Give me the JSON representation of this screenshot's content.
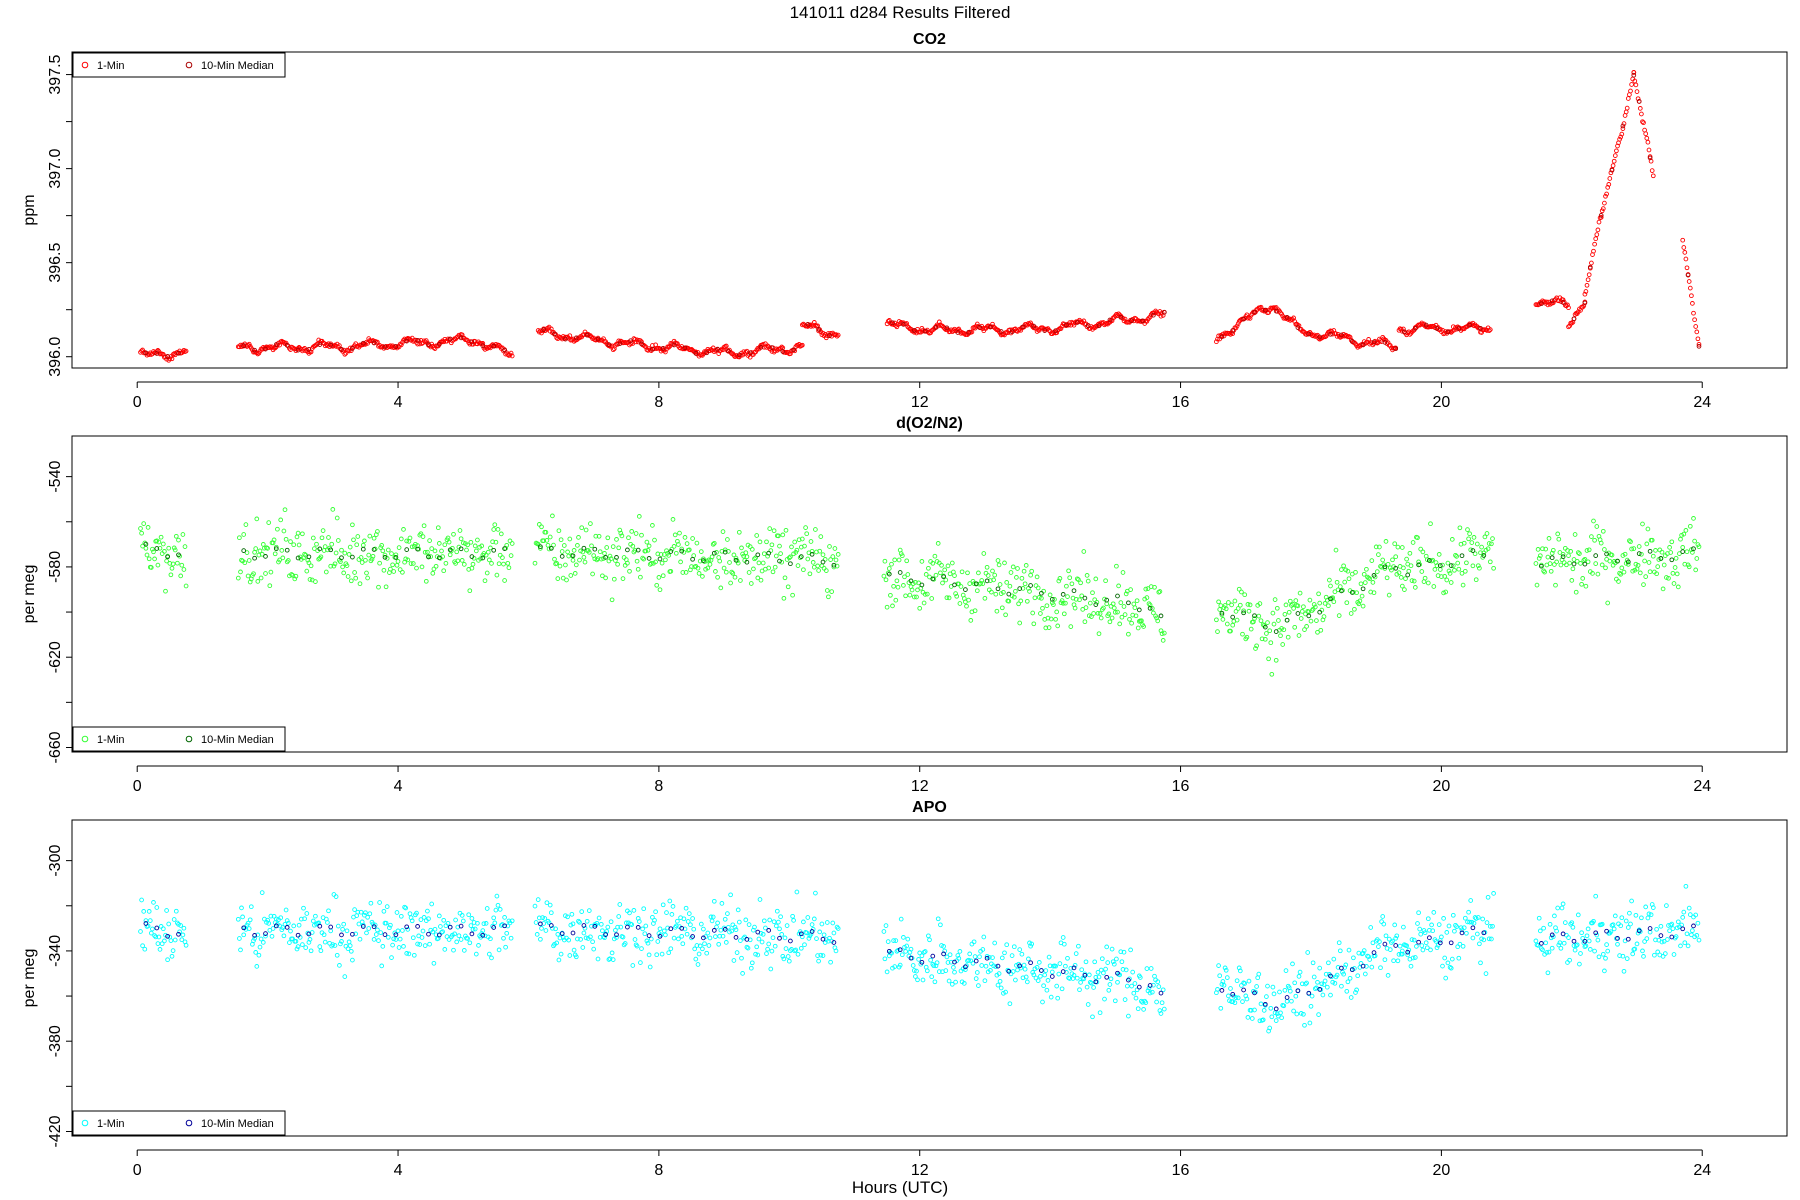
{
  "figure": {
    "title": "141011   d284   Results Filtered"
  },
  "chart_data": [
    {
      "type": "scatter",
      "title": "CO2",
      "xlabel": "",
      "ylabel": "ppm",
      "xlim": [
        -1.0,
        25.3
      ],
      "ylim": [
        395.94,
        397.62
      ],
      "xticks": [
        "0",
        "4",
        "8",
        "12",
        "16",
        "20",
        "24"
      ],
      "yticks": [
        "396.0",
        "396.5",
        "397.0",
        "397.5"
      ],
      "legend": {
        "position": "top-left",
        "entries": [
          "1-Min",
          "10-Min Median"
        ]
      },
      "colors": {
        "one_min": "#ff0000",
        "median": "#aa0000"
      },
      "segments": [
        {
          "x_range": [
            0.05,
            0.75
          ],
          "y_trend": [
            [
              0.05,
              396.0
            ],
            [
              0.75,
              396.03
            ]
          ]
        },
        {
          "x_range": [
            1.55,
            5.75
          ],
          "y_trend": [
            [
              1.55,
              396.05
            ],
            [
              3.0,
              396.05
            ],
            [
              5.2,
              396.09
            ],
            [
              5.75,
              396.0
            ]
          ]
        },
        {
          "x_range": [
            6.15,
            10.2
          ],
          "y_trend": [
            [
              6.15,
              396.13
            ],
            [
              7.5,
              396.07
            ],
            [
              9.0,
              396.02
            ],
            [
              10.2,
              396.05
            ]
          ]
        },
        {
          "x_range": [
            10.2,
            10.75
          ],
          "y_trend": [
            [
              10.2,
              396.16
            ],
            [
              10.75,
              396.12
            ]
          ]
        },
        {
          "x_range": [
            11.5,
            15.75
          ],
          "y_trend": [
            [
              11.5,
              396.17
            ],
            [
              12.3,
              396.14
            ],
            [
              14.0,
              396.15
            ],
            [
              15.75,
              396.22
            ]
          ]
        },
        {
          "x_range": [
            16.55,
            19.3
          ],
          "y_trend": [
            [
              16.55,
              396.1
            ],
            [
              17.4,
              396.28
            ],
            [
              17.8,
              396.14
            ],
            [
              19.3,
              396.05
            ]
          ]
        },
        {
          "x_range": [
            19.35,
            20.75
          ],
          "y_trend": [
            [
              19.35,
              396.15
            ],
            [
              20.75,
              396.15
            ]
          ]
        },
        {
          "x_range": [
            21.45,
            21.95
          ],
          "y_trend": [
            [
              21.45,
              396.3
            ],
            [
              21.95,
              396.27
            ]
          ]
        },
        {
          "x_range": [
            21.95,
            22.2
          ],
          "y_trend": [
            [
              21.95,
              396.17
            ],
            [
              22.2,
              396.3
            ]
          ]
        },
        {
          "x_range": [
            22.2,
            22.95
          ],
          "y_trend": [
            [
              22.2,
              396.35
            ],
            [
              22.95,
              397.5
            ]
          ]
        },
        {
          "x_range": [
            22.95,
            23.25
          ],
          "y_trend": [
            [
              22.95,
              397.5
            ],
            [
              23.25,
              396.95
            ]
          ]
        },
        {
          "x_range": [
            23.7,
            23.95
          ],
          "y_trend": [
            [
              23.7,
              396.6
            ],
            [
              23.95,
              396.05
            ]
          ]
        }
      ]
    },
    {
      "type": "scatter",
      "title": "d(O2/N2)",
      "xlabel": "",
      "ylabel": "per meg",
      "xlim": [
        -1.0,
        25.3
      ],
      "ylim": [
        -662,
        -522
      ],
      "xticks": [
        "0",
        "4",
        "8",
        "12",
        "16",
        "20",
        "24"
      ],
      "yticks": [
        "-540",
        "-580",
        "-620",
        "-660"
      ],
      "legend": {
        "position": "bottom-left",
        "entries": [
          "1-Min",
          "10-Min Median"
        ]
      },
      "colors": {
        "one_min": "#33ff33",
        "median": "#006600"
      },
      "segments": [
        {
          "x_range": [
            0.05,
            0.75
          ],
          "y_trend": [
            [
              0.05,
              -572
            ],
            [
              0.75,
              -574
            ]
          ]
        },
        {
          "x_range": [
            1.55,
            5.75
          ],
          "y_trend": [
            [
              1.55,
              -574
            ],
            [
              5.75,
              -574
            ]
          ]
        },
        {
          "x_range": [
            6.1,
            10.75
          ],
          "y_trend": [
            [
              6.1,
              -573
            ],
            [
              10.75,
              -577
            ]
          ]
        },
        {
          "x_range": [
            11.45,
            15.75
          ],
          "y_trend": [
            [
              11.45,
              -584
            ],
            [
              13.5,
              -590
            ],
            [
              15.5,
              -597
            ],
            [
              15.75,
              -606
            ]
          ]
        },
        {
          "x_range": [
            16.55,
            19.4
          ],
          "y_trend": [
            [
              16.55,
              -598
            ],
            [
              17.5,
              -607
            ],
            [
              18.2,
              -597
            ],
            [
              19.4,
              -578
            ]
          ]
        },
        {
          "x_range": [
            19.4,
            20.8
          ],
          "y_trend": [
            [
              19.4,
              -582
            ],
            [
              20.8,
              -573
            ]
          ]
        },
        {
          "x_range": [
            21.45,
            23.95
          ],
          "y_trend": [
            [
              21.45,
              -578
            ],
            [
              23.95,
              -574
            ]
          ]
        }
      ]
    },
    {
      "type": "scatter",
      "title": "APO",
      "xlabel": "Hours (UTC)",
      "ylabel": "per meg",
      "xlim": [
        -1.0,
        25.3
      ],
      "ylim": [
        -422,
        -282
      ],
      "xticks": [
        "0",
        "4",
        "8",
        "12",
        "16",
        "20",
        "24"
      ],
      "yticks": [
        "-300",
        "-340",
        "-380",
        "-420"
      ],
      "legend": {
        "position": "bottom-left",
        "entries": [
          "1-Min",
          "10-Min Median"
        ]
      },
      "colors": {
        "one_min": "#00ffff",
        "median": "#000099"
      },
      "segments": [
        {
          "x_range": [
            0.05,
            0.75
          ],
          "y_trend": [
            [
              0.05,
              -330
            ],
            [
              0.75,
              -332
            ]
          ]
        },
        {
          "x_range": [
            1.55,
            5.75
          ],
          "y_trend": [
            [
              1.55,
              -331
            ],
            [
              5.75,
              -331
            ]
          ]
        },
        {
          "x_range": [
            6.1,
            10.75
          ],
          "y_trend": [
            [
              6.1,
              -330
            ],
            [
              10.75,
              -334
            ]
          ]
        },
        {
          "x_range": [
            11.45,
            15.75
          ],
          "y_trend": [
            [
              11.45,
              -341
            ],
            [
              13.5,
              -347
            ],
            [
              15.5,
              -354
            ],
            [
              15.75,
              -363
            ]
          ]
        },
        {
          "x_range": [
            16.55,
            19.4
          ],
          "y_trend": [
            [
              16.55,
              -355
            ],
            [
              17.5,
              -364
            ],
            [
              18.2,
              -354
            ],
            [
              19.4,
              -335
            ]
          ]
        },
        {
          "x_range": [
            19.4,
            20.8
          ],
          "y_trend": [
            [
              19.4,
              -339
            ],
            [
              20.8,
              -330
            ]
          ]
        },
        {
          "x_range": [
            21.45,
            23.95
          ],
          "y_trend": [
            [
              21.45,
              -335
            ],
            [
              23.95,
              -331
            ]
          ]
        }
      ]
    }
  ]
}
